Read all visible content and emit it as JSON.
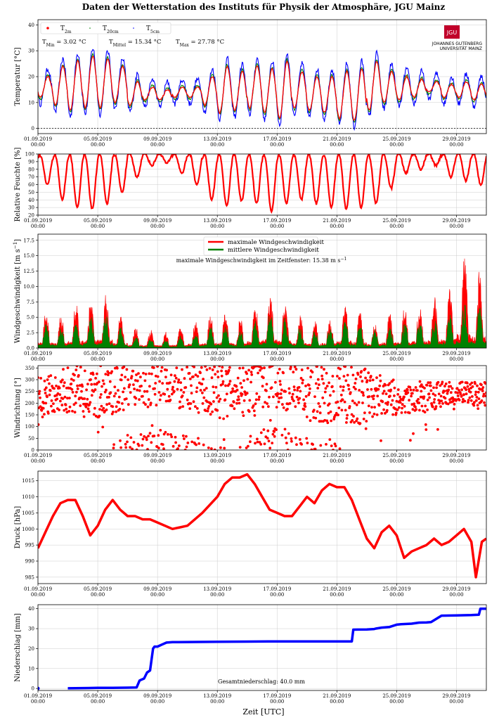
{
  "page": {
    "title": "Daten der Wetterstation des Instituts für Physik der Atmosphäre, JGU Mainz",
    "xlabel": "Zeit [UTC]",
    "logo": {
      "mark": "JGU",
      "line1": "JOHANNES GUTENBERG",
      "line2": "UNIVERSITÄT MAINZ"
    }
  },
  "chart_data": [
    {
      "type": "line",
      "id": "temperature",
      "ylabel": "Temperatur [°C]",
      "x_range": [
        "2019-09-01T00:00",
        "2019-10-01T00:00"
      ],
      "ylim": [
        -2,
        42
      ],
      "yticks": [
        0,
        10,
        20,
        30,
        40
      ],
      "xticks": [
        "01.09.2019 00:00",
        "05.09.2019 00:00",
        "09.09.2019 00:00",
        "13.09.2019 00:00",
        "17.09.2019 00:00",
        "21.09.2019 00:00",
        "25.09.2019 00:00",
        "29.09.2019 00:00"
      ],
      "grid": true,
      "legend": {
        "position": "top-left",
        "entries": [
          "T_2m",
          "T_20cm",
          "T_5cm"
        ]
      },
      "annotations": {
        "tmin": "T_Min = 3.02 °C",
        "tmean": "T_Mittel = 15.34 °C",
        "tmax": "T_Max = 27.78 °C"
      },
      "reference_line": 0,
      "series": [
        {
          "name": "T_2m",
          "color": "#ff0000"
        },
        {
          "name": "T_20cm",
          "color": "#008000"
        },
        {
          "name": "T_5cm",
          "color": "#0000ff"
        }
      ],
      "daily_min_max_2m": [
        [
          12,
          20
        ],
        [
          9,
          24
        ],
        [
          7,
          26
        ],
        [
          8,
          28
        ],
        [
          8,
          27
        ],
        [
          10,
          24
        ],
        [
          9,
          18
        ],
        [
          11,
          16
        ],
        [
          11,
          15
        ],
        [
          12,
          16
        ],
        [
          12,
          16
        ],
        [
          9,
          20
        ],
        [
          6,
          24
        ],
        [
          7,
          22
        ],
        [
          8,
          24
        ],
        [
          6,
          23
        ],
        [
          4,
          26
        ],
        [
          8,
          22
        ],
        [
          7,
          20
        ],
        [
          6,
          20
        ],
        [
          4,
          22
        ],
        [
          3,
          23
        ],
        [
          7,
          26
        ],
        [
          10,
          22
        ],
        [
          11,
          20
        ],
        [
          12,
          19
        ],
        [
          14,
          18
        ],
        [
          12,
          17
        ],
        [
          12,
          18
        ],
        [
          11,
          17
        ]
      ]
    },
    {
      "type": "line",
      "id": "humidity",
      "ylabel": "Relative Feuchte [%]",
      "ylim": [
        20,
        100
      ],
      "yticks": [
        20,
        30,
        40,
        50,
        60,
        70,
        80,
        90,
        100
      ],
      "grid": true,
      "series": [
        {
          "name": "Relative Feuchte",
          "color": "#ff0000"
        }
      ],
      "daily_min_max": [
        [
          60,
          98
        ],
        [
          40,
          99
        ],
        [
          30,
          99
        ],
        [
          28,
          99
        ],
        [
          35,
          99
        ],
        [
          50,
          99
        ],
        [
          70,
          100
        ],
        [
          85,
          100
        ],
        [
          88,
          100
        ],
        [
          75,
          100
        ],
        [
          60,
          100
        ],
        [
          40,
          99
        ],
        [
          32,
          99
        ],
        [
          38,
          99
        ],
        [
          35,
          99
        ],
        [
          25,
          99
        ],
        [
          35,
          98
        ],
        [
          40,
          98
        ],
        [
          35,
          99
        ],
        [
          30,
          99
        ],
        [
          28,
          99
        ],
        [
          30,
          99
        ],
        [
          35,
          98
        ],
        [
          55,
          99
        ],
        [
          75,
          100
        ],
        [
          80,
          100
        ],
        [
          85,
          100
        ],
        [
          70,
          100
        ],
        [
          65,
          100
        ],
        [
          60,
          100
        ]
      ]
    },
    {
      "type": "line",
      "id": "wind_speed",
      "ylabel": "Windgeschwindigkeit [m s^-1]",
      "ylim": [
        0,
        18.5
      ],
      "yticks": [
        0.0,
        2.5,
        5.0,
        7.5,
        10.0,
        12.5,
        15.0,
        17.5
      ],
      "grid": true,
      "legend": {
        "position": "top-center",
        "entries": [
          "maximale Windgeschwindigkeit",
          "mittlere Windgeschwindigkeit"
        ]
      },
      "annotation": "maximale Windgeschwindigkeit im Zeitfenster: 15.38 m s^-1",
      "series": [
        {
          "name": "maximale Windgeschwindigkeit",
          "color": "#ff0000"
        },
        {
          "name": "mittlere Windgeschwindigkeit",
          "color": "#008000"
        }
      ],
      "daily_peak_max": [
        6.5,
        5.5,
        7.5,
        8.5,
        9.0,
        5.5,
        3.5,
        3.0,
        3.0,
        3.5,
        4.5,
        5.5,
        6.0,
        5.0,
        7.5,
        9.5,
        8.0,
        5.5,
        4.5,
        5.5,
        8.0,
        6.5,
        4.5,
        6.0,
        7.0,
        7.5,
        8.5,
        10.5,
        15.4,
        13.0
      ],
      "daily_peak_mean": [
        4.0,
        3.5,
        4.5,
        5.5,
        5.5,
        3.5,
        2.0,
        1.5,
        1.5,
        2.0,
        2.5,
        3.5,
        4.0,
        3.0,
        4.5,
        6.0,
        5.0,
        3.5,
        3.0,
        3.5,
        5.0,
        4.0,
        3.0,
        3.5,
        4.5,
        4.5,
        5.0,
        6.0,
        7.5,
        7.0
      ]
    },
    {
      "type": "scatter",
      "id": "wind_direction",
      "ylabel": "Windrichtung [°]",
      "ylim": [
        0,
        360
      ],
      "yticks": [
        0,
        50,
        100,
        150,
        200,
        250,
        300,
        350
      ],
      "grid": true,
      "series": [
        {
          "name": "Windrichtung",
          "color": "#ff0000"
        }
      ],
      "daily_center": [
        230,
        250,
        260,
        240,
        250,
        280,
        300,
        310,
        320,
        300,
        290,
        270,
        250,
        260,
        300,
        320,
        310,
        280,
        260,
        250,
        240,
        230,
        230,
        220,
        210,
        220,
        230,
        240,
        240,
        240
      ],
      "daily_spread": [
        90,
        90,
        100,
        100,
        110,
        120,
        130,
        130,
        130,
        130,
        120,
        120,
        120,
        130,
        140,
        140,
        140,
        130,
        140,
        140,
        130,
        120,
        100,
        80,
        60,
        60,
        60,
        50,
        50,
        50
      ]
    },
    {
      "type": "line",
      "id": "pressure",
      "ylabel": "Druck [hPa]",
      "ylim": [
        983,
        1018
      ],
      "yticks": [
        985,
        990,
        995,
        1000,
        1005,
        1010,
        1015
      ],
      "grid": true,
      "series": [
        {
          "name": "Druck",
          "color": "#ff0000",
          "x_days": [
            0,
            0.5,
            1,
            1.5,
            2,
            2.5,
            3,
            3.5,
            4,
            4.5,
            5,
            5.5,
            6,
            6.5,
            7,
            7.5,
            8,
            9,
            10,
            11,
            12,
            12.5,
            13,
            13.5,
            14,
            14.5,
            15,
            15.5,
            16,
            16.5,
            17,
            17.5,
            18,
            18.5,
            19,
            19.5,
            20,
            20.5,
            21,
            21.5,
            22,
            22.5,
            23,
            23.5,
            24,
            24.5,
            25,
            25.5,
            26,
            26.5,
            27,
            27.5,
            28,
            28.5,
            29,
            29.3,
            29.7,
            30
          ],
          "values": [
            994,
            999,
            1004,
            1008,
            1009,
            1009,
            1004,
            998,
            1001,
            1006,
            1009,
            1006,
            1004,
            1004,
            1003,
            1003,
            1002,
            1000,
            1001,
            1005,
            1010,
            1014,
            1016,
            1016,
            1017,
            1014,
            1010,
            1006,
            1005,
            1004,
            1004,
            1007,
            1010,
            1008,
            1012,
            1014,
            1013,
            1013,
            1009,
            1003,
            997,
            994,
            999,
            1001,
            998,
            991,
            993,
            994,
            995,
            997,
            995,
            996,
            998,
            1000,
            996,
            985,
            996,
            997
          ]
        }
      ]
    },
    {
      "type": "line",
      "id": "precipitation",
      "ylabel": "Niederschlag [mm]",
      "ylim": [
        -1,
        42
      ],
      "yticks": [
        0,
        10,
        20,
        30,
        40
      ],
      "grid": true,
      "annotation": "Gesamtniederschlag: 40.0 mm",
      "series": [
        {
          "name": "Niederschlag",
          "color": "#0000ff",
          "x_days": [
            0,
            0.1,
            2.0,
            3,
            4,
            5,
            6,
            6.6,
            6.8,
            7.1,
            7.3,
            7.5,
            7.7,
            7.8,
            8.0,
            8.3,
            8.6,
            9,
            10,
            12,
            14,
            16,
            18,
            20,
            20.5,
            21,
            21.1,
            22,
            22.5,
            22.6,
            23,
            23.5,
            24,
            24.3,
            25,
            25.5,
            26,
            26.3,
            27,
            28,
            29,
            29.5,
            29.6,
            30
          ],
          "values": [
            0,
            0,
            0.1,
            0.2,
            0.3,
            0.3,
            0.4,
            0.5,
            4,
            5,
            8,
            9,
            20,
            21,
            21,
            22,
            23,
            23.2,
            23.3,
            23.4,
            23.5,
            23.6,
            23.6,
            23.6,
            23.6,
            23.6,
            29.5,
            29.6,
            29.8,
            30,
            30.5,
            30.8,
            32,
            32.2,
            32.5,
            33,
            33.1,
            33.3,
            36.5,
            36.6,
            36.8,
            37,
            40,
            40
          ]
        }
      ]
    }
  ]
}
